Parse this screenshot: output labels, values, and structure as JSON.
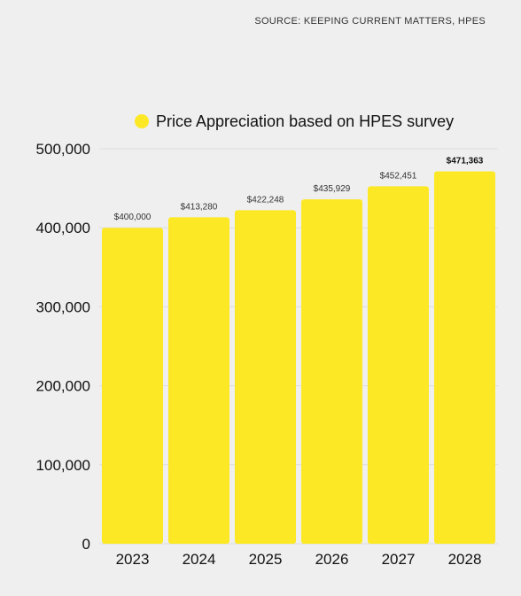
{
  "source": "SOURCE: KEEPING CURRENT MATTERS, HPES",
  "colors": {
    "bar": "#fde825",
    "background": "#efefef",
    "grid": "#dcdcdc"
  },
  "chart_data": {
    "type": "bar",
    "categories": [
      "2023",
      "2024",
      "2025",
      "2026",
      "2027",
      "2028"
    ],
    "series": [
      {
        "name": "Price Appreciation based on HPES survey",
        "values": [
          400000,
          413280,
          422248,
          435929,
          452451,
          471363
        ],
        "labels": [
          "$400,000",
          "$413,280",
          "$422,248",
          "$435,929",
          "$452,451",
          "$471,363"
        ]
      }
    ],
    "ylim": [
      0,
      500000
    ],
    "yticks": [
      0,
      100000,
      200000,
      300000,
      400000,
      500000
    ],
    "ytick_labels": [
      "0",
      "100,000",
      "200,000",
      "300,000",
      "400,000",
      "500,000"
    ],
    "legend": "top",
    "grid": true
  }
}
